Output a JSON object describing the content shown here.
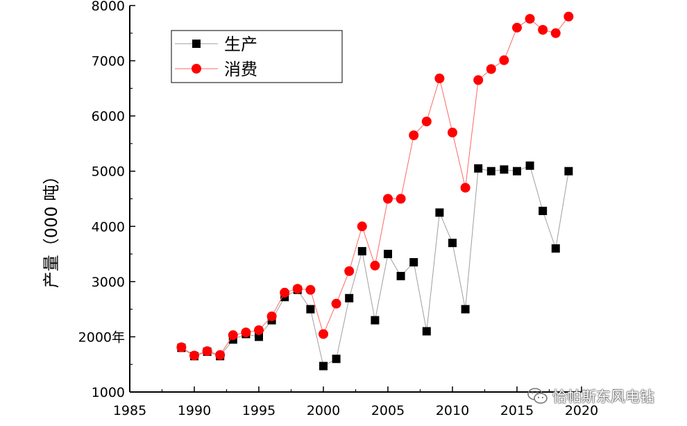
{
  "chart_data": {
    "type": "line",
    "title": "",
    "xlabel": "",
    "ylabel": "产量（000 吨）",
    "xlim": [
      1985,
      2020
    ],
    "ylim": [
      1000,
      8000
    ],
    "x_ticks": [
      "1985",
      "1990",
      "1995",
      "2000",
      "2005",
      "2010",
      "2015",
      "2020"
    ],
    "y_ticks": [
      "1000",
      "2000年",
      "3000",
      "4000",
      "5000",
      "6000",
      "7000",
      "8000"
    ],
    "legend_position": "top-left",
    "grid": false,
    "series": [
      {
        "name": "生产",
        "color": "#000000",
        "line_color": "#9e9e9e",
        "marker": "square",
        "x": [
          1989,
          1990,
          1991,
          1992,
          1993,
          1994,
          1995,
          1996,
          1997,
          1998,
          1999,
          2000,
          2001,
          2002,
          2003,
          2004,
          2005,
          2006,
          2007,
          2008,
          2009,
          2010,
          2011,
          2012,
          2013,
          2014,
          2015,
          2016,
          2017,
          2018,
          2019
        ],
        "y": [
          1800,
          1650,
          1730,
          1650,
          1950,
          2050,
          2000,
          2300,
          2720,
          2850,
          2500,
          1470,
          1600,
          2700,
          3550,
          2300,
          3500,
          3100,
          3350,
          2100,
          4250,
          3700,
          2500,
          5050,
          5000,
          5030,
          5000,
          5100,
          4280,
          3600,
          5000
        ]
      },
      {
        "name": "消费",
        "color": "#ff0000",
        "line_color": "#ff6666",
        "marker": "circle",
        "x": [
          1989,
          1990,
          1991,
          1992,
          1993,
          1994,
          1995,
          1996,
          1997,
          1998,
          1999,
          2000,
          2001,
          2002,
          2003,
          2004,
          2005,
          2006,
          2007,
          2008,
          2009,
          2010,
          2011,
          2012,
          2013,
          2014,
          2015,
          2016,
          2017,
          2018,
          2019
        ],
        "y": [
          1810,
          1660,
          1740,
          1670,
          2030,
          2080,
          2120,
          2370,
          2800,
          2870,
          2850,
          2050,
          2600,
          3190,
          4000,
          3290,
          4500,
          4500,
          5650,
          5900,
          6680,
          5700,
          4700,
          6650,
          6850,
          7010,
          7600,
          7760,
          7560,
          7500,
          7800
        ]
      }
    ]
  },
  "watermark": {
    "text": "恰帕斯东风电钻",
    "icon": "wechat-icon"
  }
}
